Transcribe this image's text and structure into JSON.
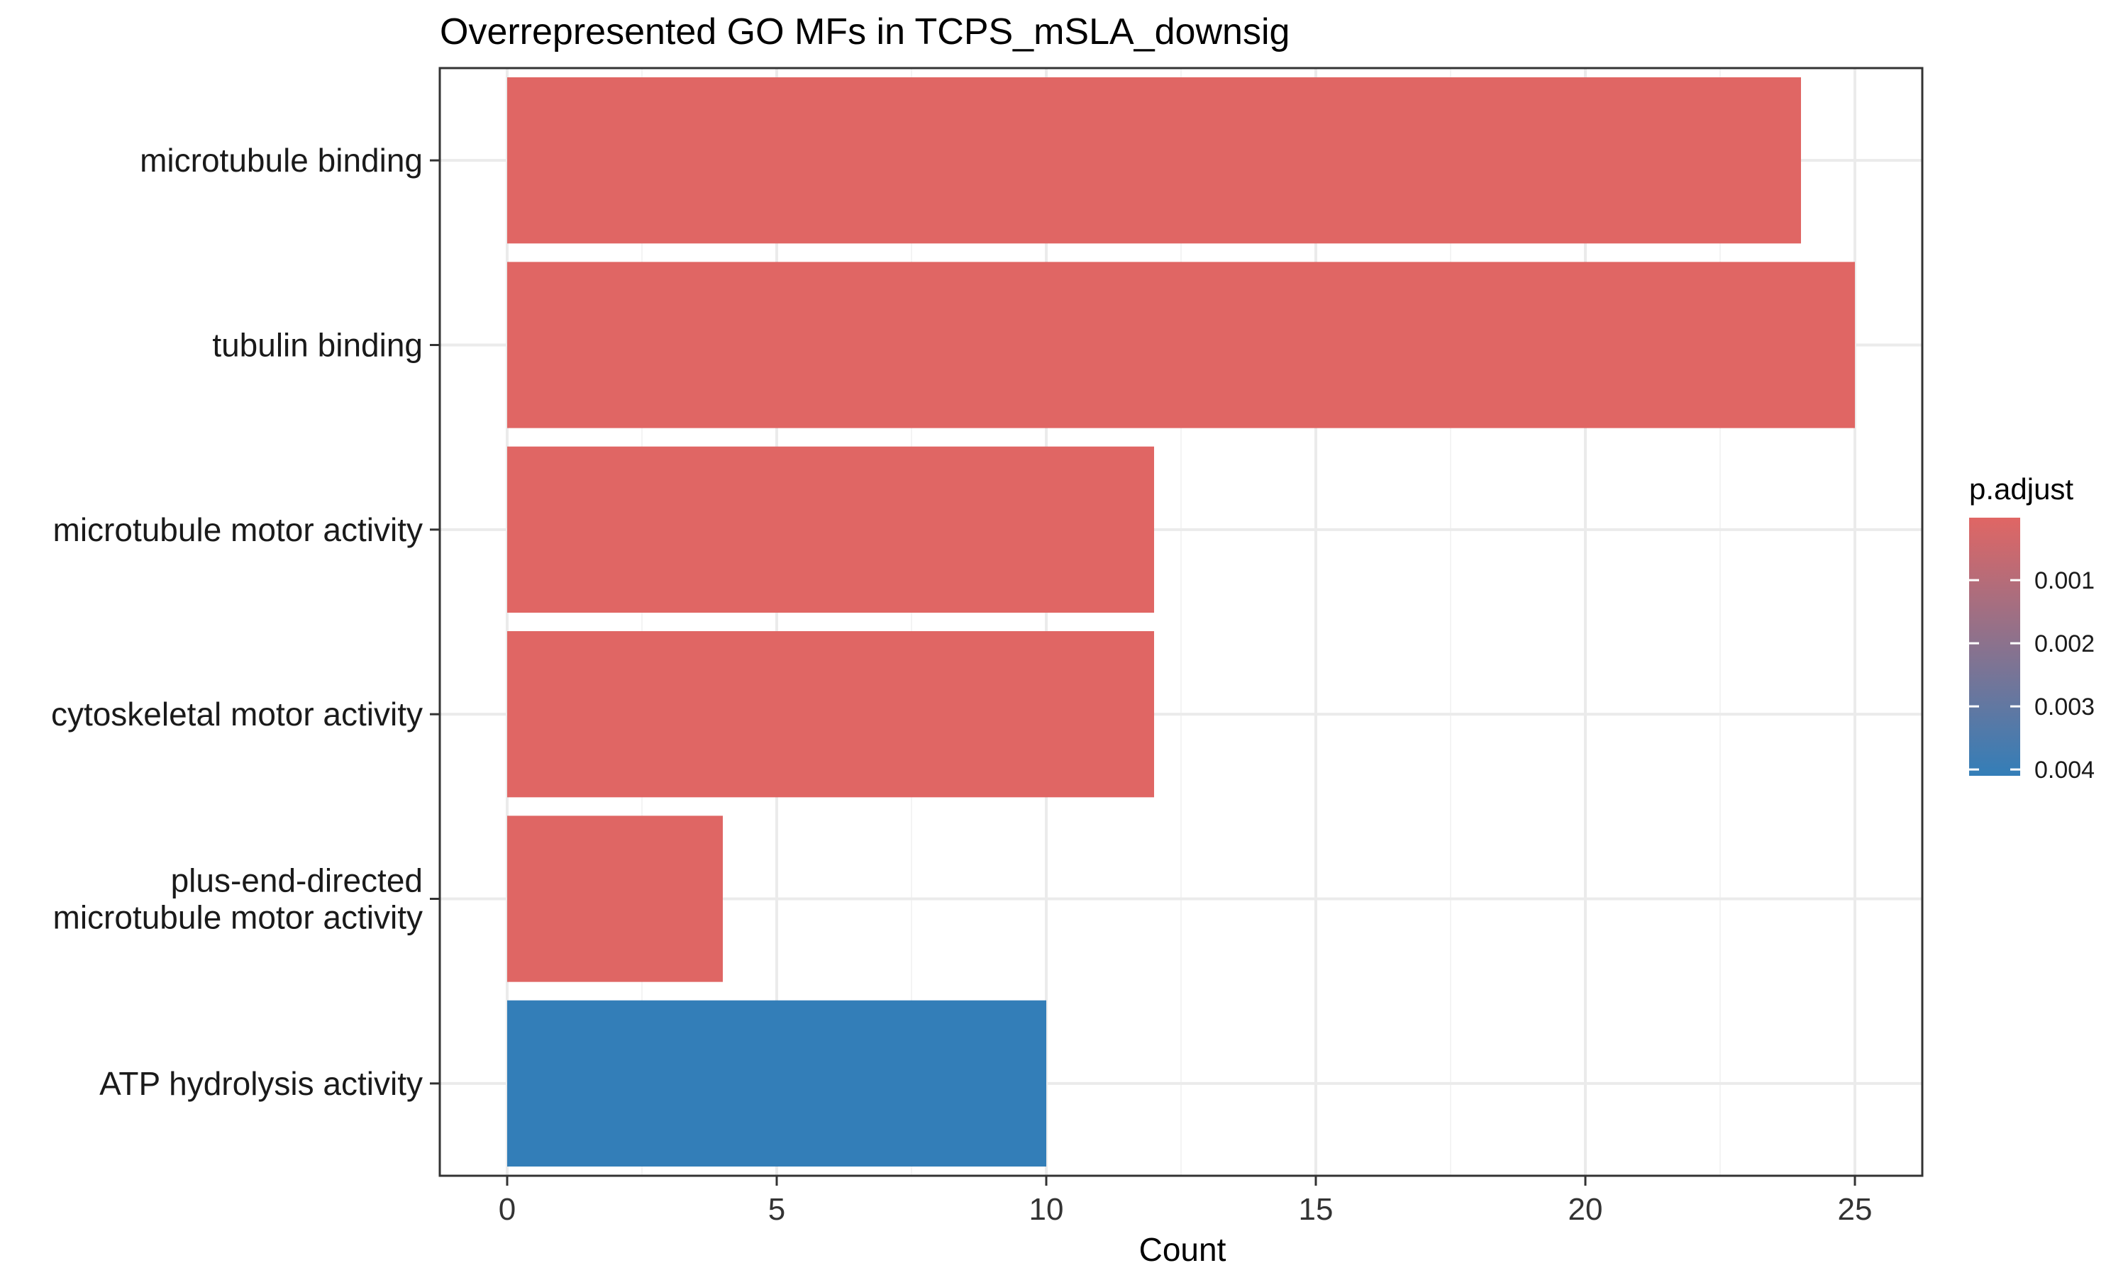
{
  "chart_data": {
    "type": "bar",
    "orientation": "horizontal",
    "title": "Overrepresented GO MFs in TCPS_mSLA_downsig",
    "xlabel": "Count",
    "ylabel": "",
    "xlim": [
      -1.25,
      26.25
    ],
    "x_ticks": [
      0,
      5,
      10,
      15,
      20,
      25
    ],
    "x_tick_labels": [
      "0",
      "5",
      "10",
      "15",
      "20",
      "25"
    ],
    "grid": true,
    "categories": [
      [
        "microtubule binding"
      ],
      [
        "tubulin binding"
      ],
      [
        "microtubule motor activity"
      ],
      [
        "cytoskeletal motor activity"
      ],
      [
        "plus-end-directed",
        "microtubule motor activity"
      ],
      [
        "ATP hydrolysis activity"
      ]
    ],
    "values": [
      24,
      25,
      12,
      12,
      4,
      10
    ],
    "p_adjust": [
      1e-05,
      1e-05,
      2e-05,
      2e-05,
      3e-05,
      0.0041
    ],
    "legend": {
      "title": "p.adjust",
      "position": "right",
      "ticks": [
        0.001,
        0.002,
        0.003,
        0.004
      ],
      "tick_labels": [
        "0.001",
        "0.002",
        "0.003",
        "0.004"
      ],
      "range": [
        1e-05,
        0.0041
      ],
      "low_color": "#e06664",
      "high_color": "#337eb8"
    },
    "colors": {
      "panel_border": "#333333",
      "grid_major": "#ebebeb",
      "grid_minor": "#f4f4f4",
      "tick": "#333333"
    }
  }
}
